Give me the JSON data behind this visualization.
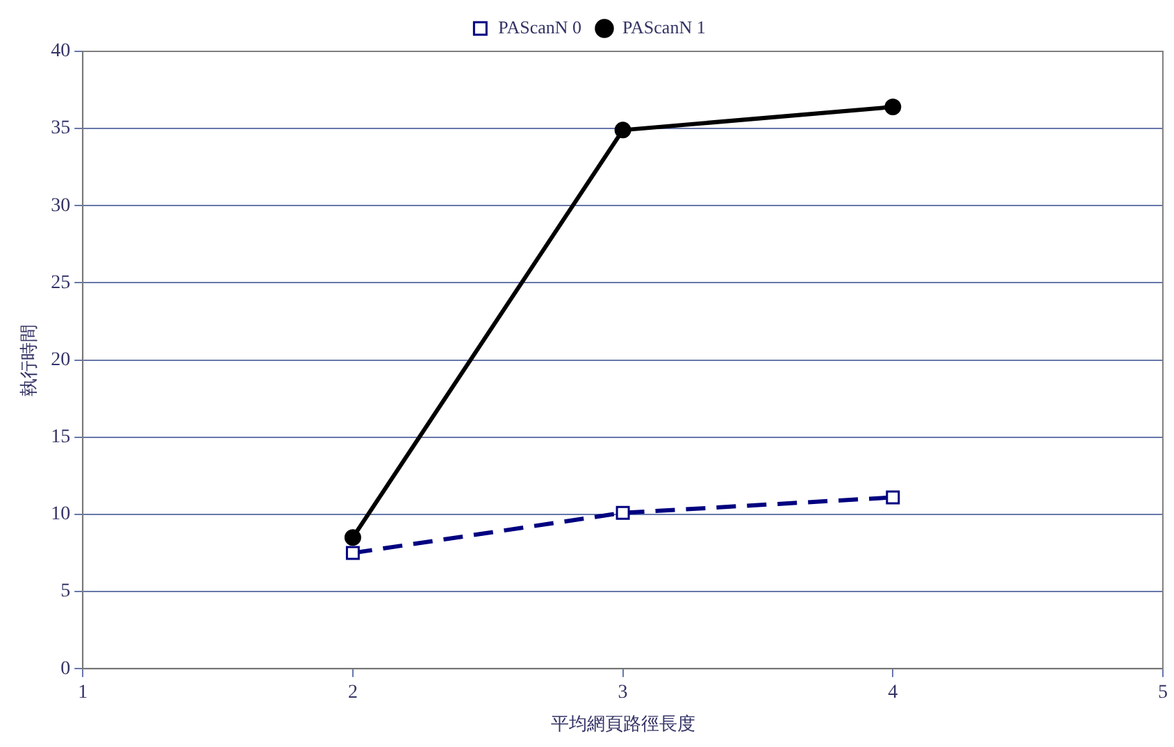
{
  "chart_data": {
    "type": "line",
    "xlabel": "平均網頁路徑長度",
    "ylabel": "執行時間",
    "x": [
      2,
      3,
      4
    ],
    "series": [
      {
        "name": "PAScanN 0",
        "color": "#000080",
        "values": [
          7.5,
          10.1,
          11.1
        ],
        "marker": "square",
        "line_style": "dashed"
      },
      {
        "name": "PAScanN 1",
        "color": "#000000",
        "values": [
          8.5,
          34.9,
          36.4
        ],
        "marker": "circle",
        "line_style": "solid"
      }
    ],
    "xlim": [
      1,
      5
    ],
    "xticks": [
      1,
      2,
      3,
      4,
      5
    ],
    "ylim": [
      0,
      40
    ],
    "yticks": [
      0,
      5,
      10,
      15,
      20,
      25,
      30,
      35,
      40
    ],
    "grid": "y",
    "legend": "top"
  }
}
